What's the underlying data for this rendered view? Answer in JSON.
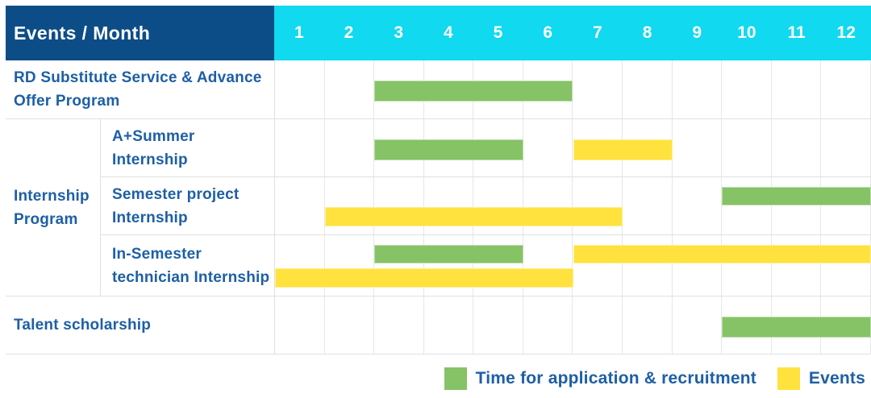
{
  "header": {
    "title": "Events / Month",
    "months": [
      "1",
      "2",
      "3",
      "4",
      "5",
      "6",
      "7",
      "8",
      "9",
      "10",
      "11",
      "12"
    ]
  },
  "colors": {
    "header_bg": "#0d4d87",
    "months_bg": "#11d9ef",
    "label_text": "#1d5fa6",
    "recruitment": "#86c266",
    "events": "#ffe23d",
    "grid_line": "#e0e0e0"
  },
  "legend": {
    "items": [
      {
        "key": "recruitment",
        "label": "Time for application & recruitment",
        "color": "#86c266"
      },
      {
        "key": "events",
        "label": "Events",
        "color": "#ffe23d"
      }
    ]
  },
  "chart_data": {
    "type": "gantt",
    "x_label": "Month",
    "x_categories": [
      1,
      2,
      3,
      4,
      5,
      6,
      7,
      8,
      9,
      10,
      11,
      12
    ],
    "legend_series": [
      "Time for application & recruitment",
      "Events"
    ],
    "rows": [
      {
        "group": "",
        "label": "RD Substitute Service & Advance Offer Program",
        "bars": [
          {
            "series": "Time for application & recruitment",
            "type": "recruitment",
            "start_month": 3,
            "end_month": 6,
            "track": "single"
          }
        ]
      },
      {
        "group": "Internship Program",
        "label": "A+Summer Internship",
        "bars": [
          {
            "series": "Time for application & recruitment",
            "type": "recruitment",
            "start_month": 3,
            "end_month": 5,
            "track": "single"
          },
          {
            "series": "Events",
            "type": "events",
            "start_month": 7,
            "end_month": 8,
            "track": "single"
          }
        ]
      },
      {
        "group": "Internship Program",
        "label": "Semester project Internship",
        "bars": [
          {
            "series": "Time for application & recruitment",
            "type": "recruitment",
            "start_month": 10,
            "end_month": 12,
            "track": "top"
          },
          {
            "series": "Events",
            "type": "events",
            "start_month": 2,
            "end_month": 7,
            "track": "bottom"
          }
        ]
      },
      {
        "group": "Internship Program",
        "label": "In-Semester technician Internship",
        "bars": [
          {
            "series": "Time for application & recruitment",
            "type": "recruitment",
            "start_month": 3,
            "end_month": 5,
            "track": "top"
          },
          {
            "series": "Events",
            "type": "events",
            "start_month": 7,
            "end_month": 12,
            "track": "top"
          },
          {
            "series": "Events",
            "type": "events",
            "start_month": 1,
            "end_month": 6,
            "track": "bottom"
          }
        ]
      },
      {
        "group": "",
        "label": "Talent scholarship",
        "bars": [
          {
            "series": "Time for application & recruitment",
            "type": "recruitment",
            "start_month": 10,
            "end_month": 12,
            "track": "single"
          }
        ]
      }
    ]
  }
}
